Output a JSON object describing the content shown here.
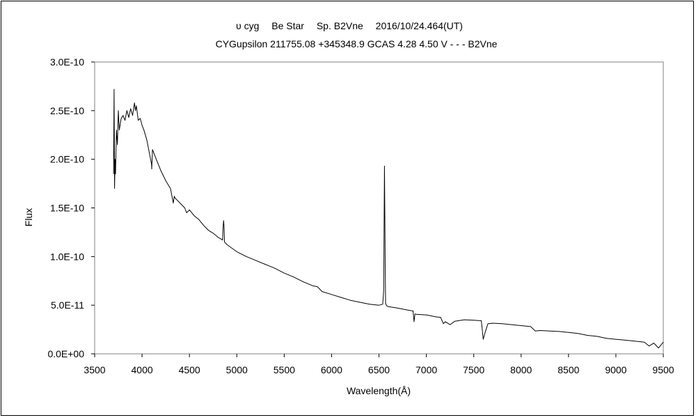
{
  "chart_data": {
    "type": "line",
    "title": "υ cyg　 Be Star　 Sp. B2Vne　 2016/10/24.464(UT)",
    "subtitle": "CYGupsilon 211755.08 +345348.9 GCAS 4.28 4.50 V - - - B2Vne",
    "xlabel": "Wavelength(Å)",
    "ylabel": "Flux",
    "xlim": [
      3500,
      9500
    ],
    "ylim": [
      0,
      3e-10
    ],
    "x_ticks": [
      "3500",
      "4000",
      "4500",
      "5000",
      "5500",
      "6000",
      "6500",
      "7000",
      "7500",
      "8000",
      "8500",
      "9000",
      "9500"
    ],
    "y_ticks": [
      "0.0E+00",
      "5.0E-11",
      "1.0E-10",
      "1.5E-10",
      "2.0E-10",
      "2.5E-10",
      "3.0E-10"
    ],
    "grid": false,
    "series": [
      {
        "x": [
          3700,
          3705,
          3710,
          3715,
          3720,
          3730,
          3740,
          3750,
          3760,
          3780,
          3800,
          3820,
          3840,
          3860,
          3880,
          3900,
          3920,
          3930,
          3940,
          3960,
          3980,
          4000,
          4020,
          4050,
          4080,
          4100,
          4102,
          4110,
          4130,
          4150,
          4200,
          4250,
          4300,
          4330,
          4340,
          4350,
          4400,
          4450,
          4470,
          4500,
          4550,
          4600,
          4650,
          4700,
          4750,
          4800,
          4850,
          4855,
          4861,
          4866,
          4870,
          4900,
          5000,
          5100,
          5200,
          5300,
          5400,
          5500,
          5600,
          5700,
          5800,
          5850,
          5900,
          6000,
          6100,
          6200,
          6300,
          6400,
          6500,
          6540,
          6550,
          6558,
          6562,
          6566,
          6570,
          6580,
          6600,
          6700,
          6800,
          6860,
          6870,
          6880,
          6900,
          7000,
          7100,
          7150,
          7180,
          7200,
          7250,
          7300,
          7400,
          7500,
          7580,
          7600,
          7620,
          7650,
          7700,
          7800,
          7900,
          8000,
          8100,
          8150,
          8200,
          8300,
          8400,
          8500,
          8600,
          8700,
          8800,
          8900,
          9000,
          9100,
          9200,
          9300,
          9350,
          9400,
          9450,
          9500
        ],
        "y": [
          1.85e-10,
          2.72e-10,
          1.7e-10,
          2e-10,
          1.85e-10,
          2.3e-10,
          2.15e-10,
          2.5e-10,
          2.3e-10,
          2.42e-10,
          2.45e-10,
          2.4e-10,
          2.5e-10,
          2.43e-10,
          2.52e-10,
          2.45e-10,
          2.58e-10,
          2.5e-10,
          2.55e-10,
          2.4e-10,
          2.42e-10,
          2.35e-10,
          2.3e-10,
          2.2e-10,
          2.05e-10,
          1.95e-10,
          1.9e-10,
          2.1e-10,
          2.05e-10,
          2e-10,
          1.88e-10,
          1.78e-10,
          1.7e-10,
          1.55e-10,
          1.62e-10,
          1.6e-10,
          1.55e-10,
          1.5e-10,
          1.45e-10,
          1.48e-10,
          1.42e-10,
          1.38e-10,
          1.32e-10,
          1.27e-10,
          1.24e-10,
          1.2e-10,
          1.17e-10,
          1.3e-10,
          1.37e-10,
          1.3e-10,
          1.15e-10,
          1.12e-10,
          1.05e-10,
          1e-10,
          9.6e-11,
          9.2e-11,
          8.8e-11,
          8.3e-11,
          7.9e-11,
          7.4e-11,
          7e-11,
          6.9e-11,
          6.4e-11,
          6.1e-11,
          5.8e-11,
          5.5e-11,
          5.3e-11,
          5.1e-11,
          5e-11,
          5.1e-11,
          6.5e-11,
          1.93e-10,
          1.45e-10,
          9e-11,
          5.2e-11,
          4.95e-11,
          4.85e-11,
          4.7e-11,
          4.5e-11,
          4.4e-11,
          3.3e-11,
          4.1e-11,
          4.05e-11,
          4e-11,
          3.8e-11,
          3.75e-11,
          3.1e-11,
          3.3e-11,
          3e-11,
          3.35e-11,
          3.5e-11,
          3.45e-11,
          3.4e-11,
          1.5e-11,
          2.2e-11,
          3.1e-11,
          3.15e-11,
          3.1e-11,
          3e-11,
          2.9e-11,
          2.8e-11,
          2.35e-11,
          2.4e-11,
          2.35e-11,
          2.3e-11,
          2.2e-11,
          2.1e-11,
          1.9e-11,
          1.8e-11,
          1.6e-11,
          1.5e-11,
          1.4e-11,
          1.3e-11,
          1.2e-11,
          8e-12,
          1.1e-11,
          6e-12,
          1.2e-11
        ]
      }
    ]
  }
}
